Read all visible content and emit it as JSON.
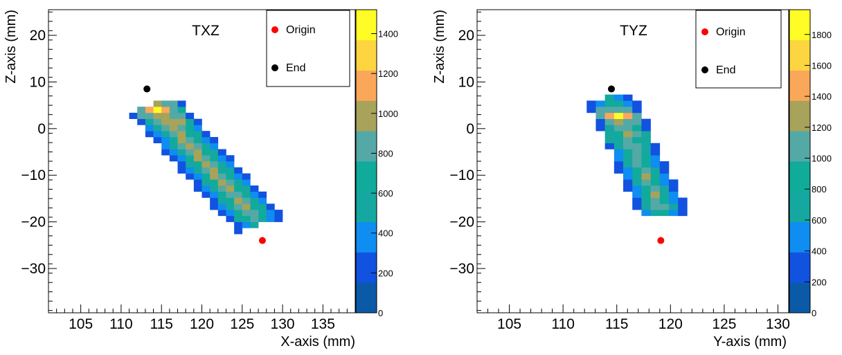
{
  "palette": [
    "#0b5aa8",
    "#1252e0",
    "#0f8df0",
    "#14a8a0",
    "#10ab9a",
    "#54a9a7",
    "#a7a35b",
    "#fba75a",
    "#fcd540",
    "#fffd25"
  ],
  "chart_data": [
    {
      "type": "heatmap",
      "title": "TXZ",
      "xlabel": "X-axis (mm)",
      "ylabel": "Z-axis (mm)",
      "xlim": [
        101,
        139
      ],
      "ylim": [
        -39.5,
        25.5
      ],
      "x_ticks": [
        105,
        110,
        115,
        120,
        125,
        130,
        135
      ],
      "y_ticks": [
        20,
        10,
        0,
        -10,
        -20,
        -30
      ],
      "bin_width": 1,
      "bin_height": 1.3,
      "z_max": 1520,
      "colorbar_ticks": [
        0,
        200,
        400,
        600,
        800,
        1000,
        1200,
        1400
      ],
      "legend": [
        {
          "label": "Origin",
          "color": "#ff0000"
        },
        {
          "label": "End",
          "color": "#000000"
        }
      ],
      "markers": [
        {
          "name": "origin",
          "x": 127.5,
          "y": -24,
          "color": "#ff0000"
        },
        {
          "name": "end",
          "x": 113.2,
          "y": 8.5,
          "color": "#000000"
        }
      ],
      "band": {
        "center_start": [
          114.5,
          4
        ],
        "center_end": [
          126.5,
          -19
        ],
        "half_width": 3.4,
        "trim_start": 1.2,
        "trim_end": 1.8,
        "peaks": [
          {
            "x": 114.5,
            "y": 4,
            "z": 1520
          },
          {
            "x": 117,
            "y": 1.5,
            "z": 1200
          }
        ],
        "peak_radius": 1.7,
        "base_z": 180,
        "z_span": 850
      }
    },
    {
      "type": "heatmap",
      "title": "TYZ",
      "xlabel": "Y-axis (mm)",
      "ylabel": "Z-axis (mm)",
      "xlim": [
        102,
        131
      ],
      "ylim": [
        -39.5,
        25.5
      ],
      "x_ticks": [
        105,
        110,
        115,
        120,
        125,
        130
      ],
      "y_ticks": [
        20,
        10,
        0,
        -10,
        -20,
        -30
      ],
      "bin_width": 0.85,
      "bin_height": 1.3,
      "z_max": 1960,
      "colorbar_ticks": [
        0,
        200,
        400,
        600,
        800,
        1000,
        1200,
        1400,
        1600,
        1800
      ],
      "legend": [
        {
          "label": "Origin",
          "color": "#ff0000"
        },
        {
          "label": "End",
          "color": "#000000"
        }
      ],
      "markers": [
        {
          "name": "origin",
          "x": 119.1,
          "y": -24,
          "color": "#ff0000"
        },
        {
          "name": "end",
          "x": 114.5,
          "y": 8.5,
          "color": "#000000"
        }
      ],
      "band": {
        "center_start": [
          114.7,
          5
        ],
        "center_end": [
          119.3,
          -18
        ],
        "half_width": 2.3,
        "trim_start": 1.8,
        "trim_end": 1.0,
        "peaks": [
          {
            "x": 115.2,
            "y": 2.5,
            "z": 1960
          },
          {
            "x": 116.2,
            "y": -1,
            "z": 1400
          }
        ],
        "peak_radius": 1.5,
        "base_z": 220,
        "z_span": 1000
      }
    }
  ]
}
